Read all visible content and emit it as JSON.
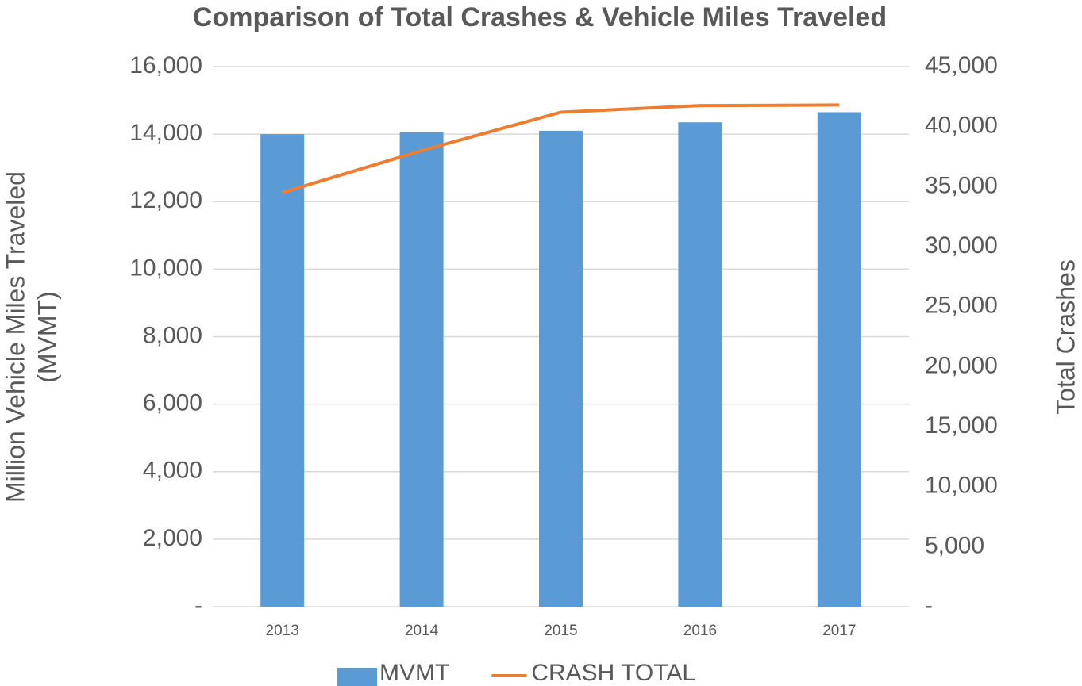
{
  "chart_data": {
    "type": "bar-line",
    "title": "Comparison of Total Crashes & Vehicle Miles Traveled",
    "y_label": [
      "Million Vehicle Miles Traveled",
      "(MVMT)"
    ],
    "y2_label": "Total Crashes",
    "categories": [
      "2013",
      "2014",
      "2015",
      "2016",
      "2017"
    ],
    "series": [
      {
        "name": "MVMT",
        "type": "bar",
        "axis": "y",
        "color": "#5b9bd5",
        "values": [
          14000,
          14050,
          14100,
          14350,
          14650
        ]
      },
      {
        "name": "CRASH TOTAL",
        "type": "line",
        "axis": "y2",
        "color": "#ed7d31",
        "values": [
          34500,
          38000,
          41200,
          41750,
          41800
        ]
      }
    ],
    "ylim": [
      0,
      16000
    ],
    "yticks": [
      {
        "value": 0,
        "label": "-"
      },
      {
        "value": 2000,
        "label": "2,000"
      },
      {
        "value": 4000,
        "label": "4,000"
      },
      {
        "value": 6000,
        "label": "6,000"
      },
      {
        "value": 8000,
        "label": "8,000"
      },
      {
        "value": 10000,
        "label": "10,000"
      },
      {
        "value": 12000,
        "label": "12,000"
      },
      {
        "value": 14000,
        "label": "14,000"
      },
      {
        "value": 16000,
        "label": "16,000"
      }
    ],
    "y2lim": [
      0,
      45000
    ],
    "y2ticks": [
      {
        "value": 0,
        "label": "-"
      },
      {
        "value": 5000,
        "label": "5,000"
      },
      {
        "value": 10000,
        "label": "10,000"
      },
      {
        "value": 15000,
        "label": "15,000"
      },
      {
        "value": 20000,
        "label": "20,000"
      },
      {
        "value": 25000,
        "label": "25,000"
      },
      {
        "value": 30000,
        "label": "30,000"
      },
      {
        "value": 35000,
        "label": "35,000"
      },
      {
        "value": 40000,
        "label": "40,000"
      },
      {
        "value": 45000,
        "label": "45,000"
      }
    ],
    "grid": true,
    "legend": "bottom"
  }
}
